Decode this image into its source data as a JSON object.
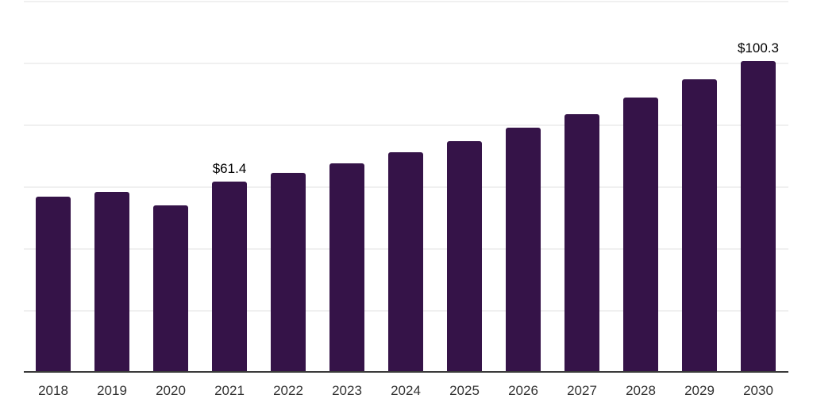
{
  "chart_data": {
    "type": "bar",
    "title": "",
    "xlabel": "",
    "ylabel": "",
    "categories": [
      "2018",
      "2019",
      "2020",
      "2021",
      "2022",
      "2023",
      "2024",
      "2025",
      "2026",
      "2027",
      "2028",
      "2029",
      "2030"
    ],
    "values": [
      56.3,
      57.9,
      53.7,
      61.4,
      64.1,
      67.1,
      70.9,
      74.4,
      78.6,
      83.2,
      88.4,
      94.3,
      100.3
    ],
    "data_labels": {
      "2021": "$61.4",
      "2030": "$100.3"
    },
    "ylim": [
      0,
      120
    ],
    "grid_step": 20,
    "grid": "horizontal",
    "y_axis_labels_visible": false,
    "legend": "none",
    "colors": {
      "bar": "#351348",
      "gridline": "#f0f0f0",
      "axis_line": "#3a3a3a",
      "tick_label": "#333333",
      "data_label": "#000000",
      "background": "#ffffff"
    }
  }
}
